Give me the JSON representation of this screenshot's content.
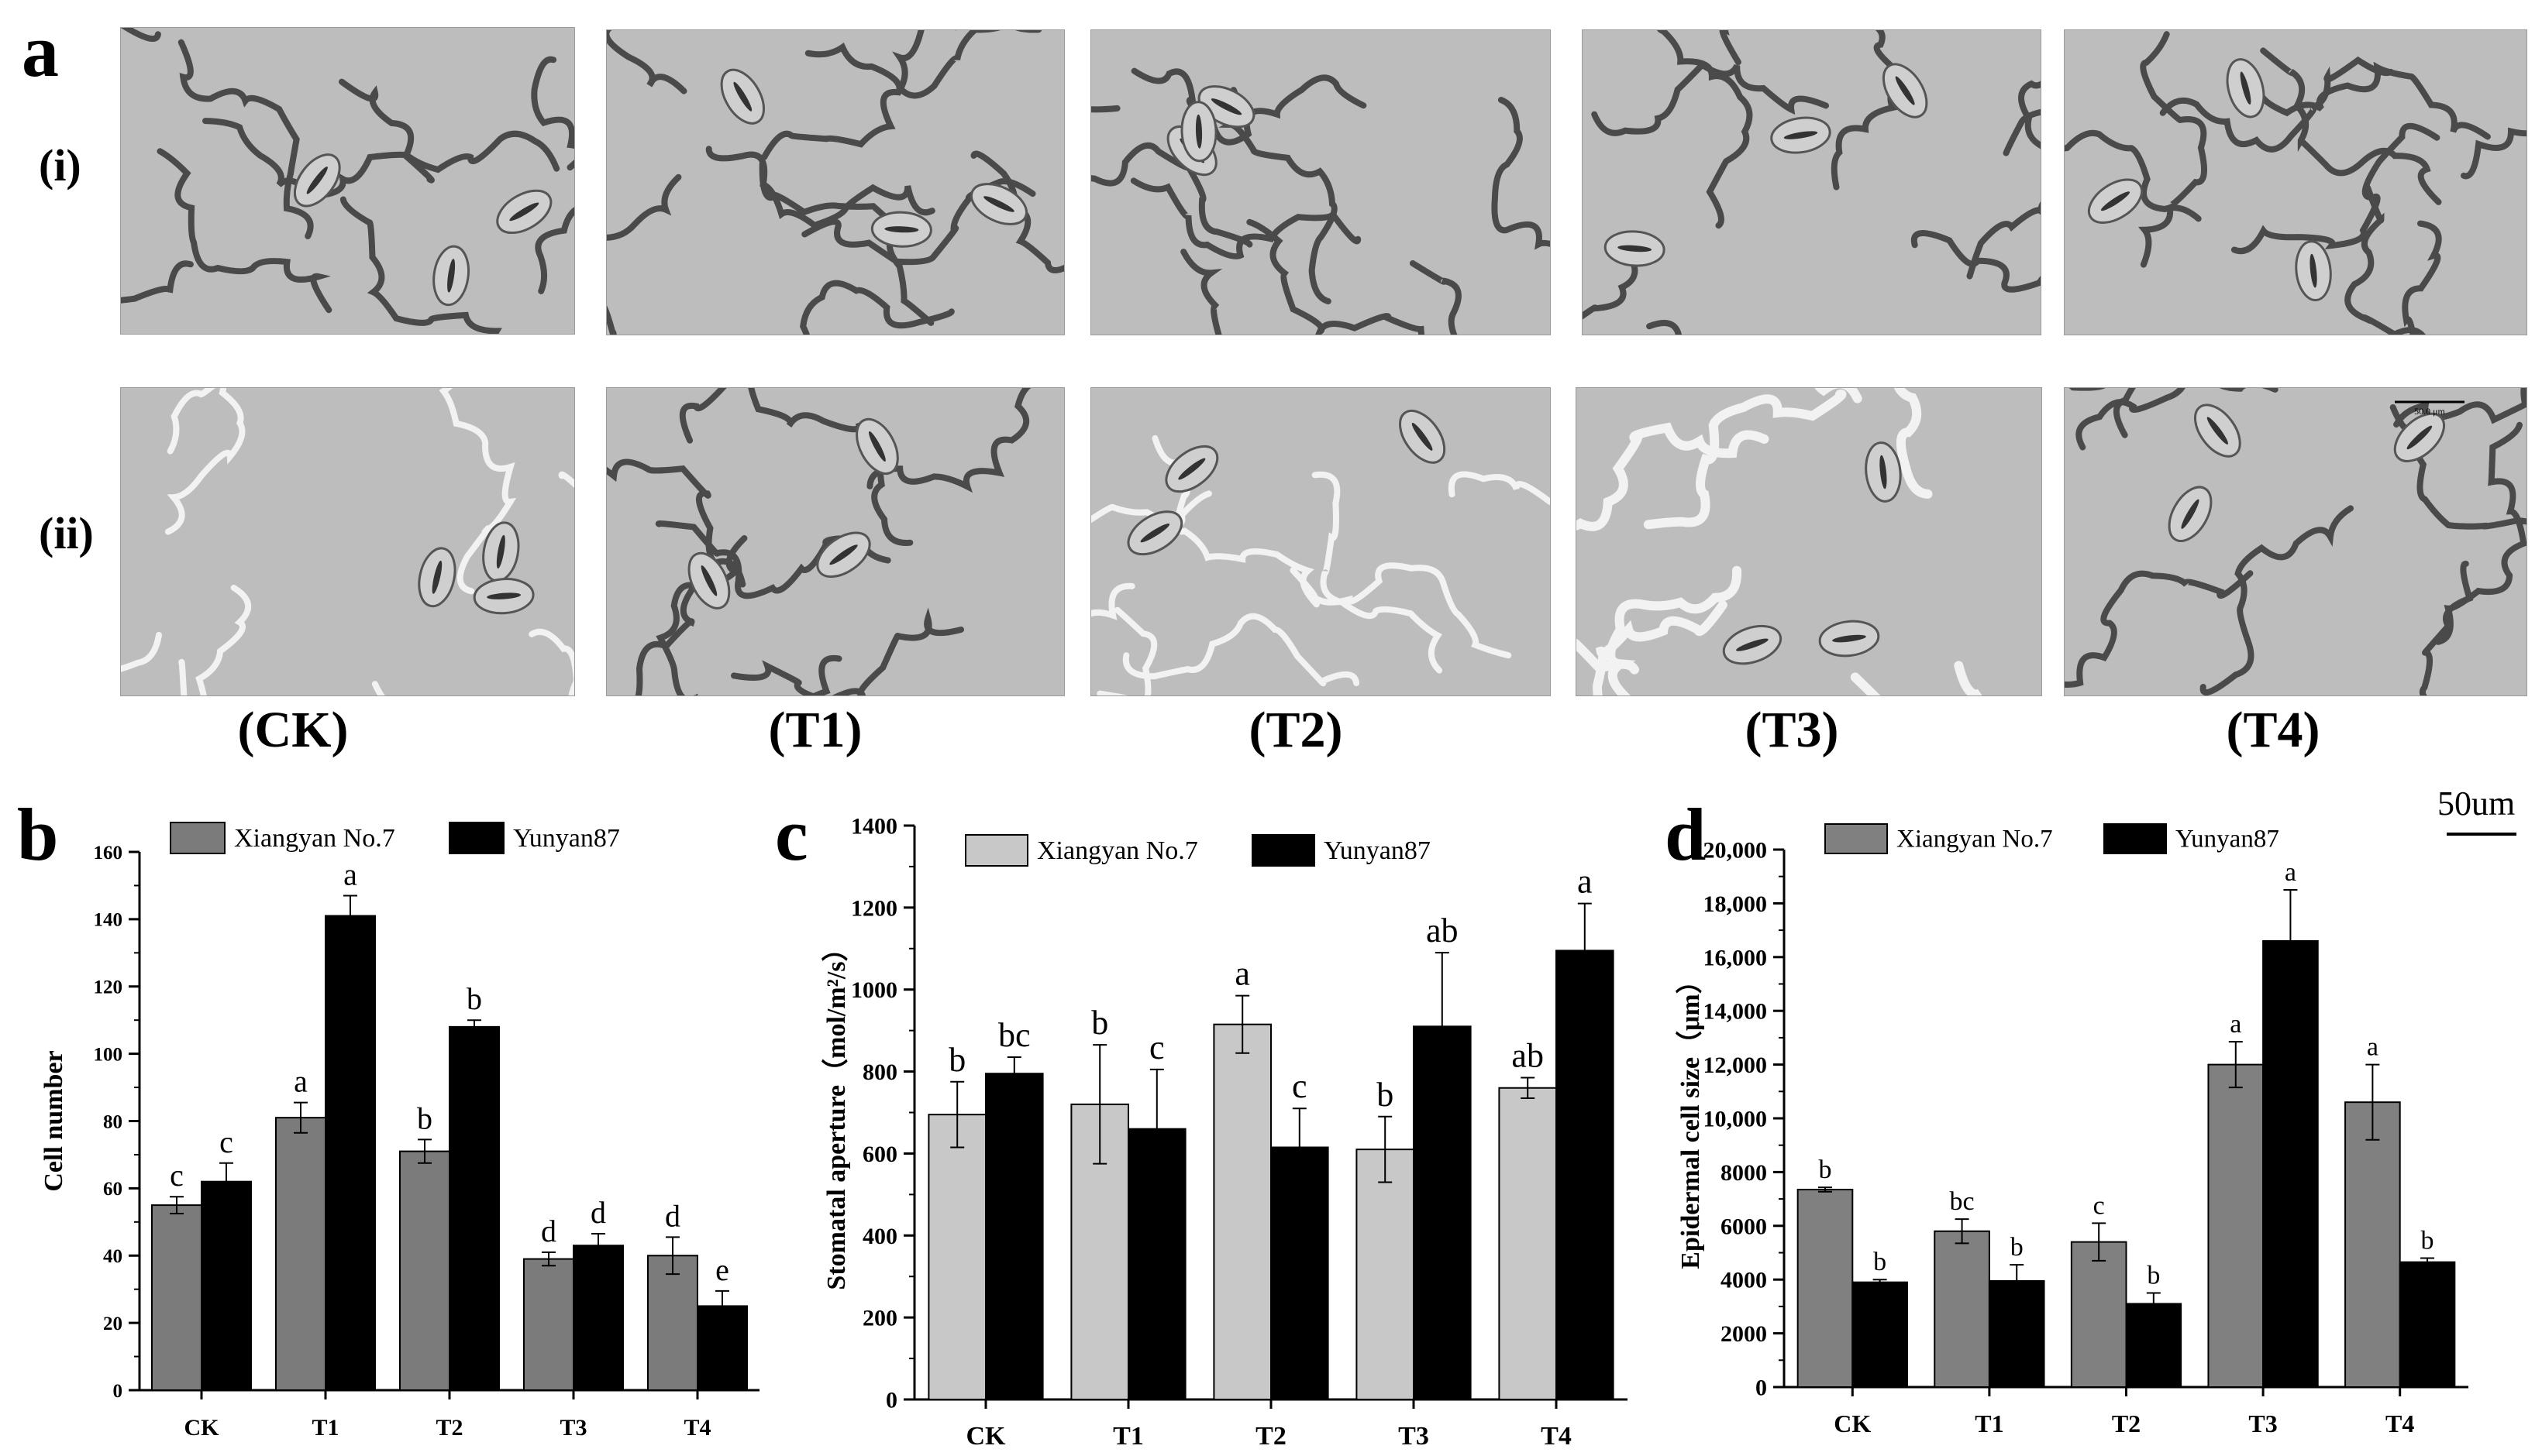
{
  "figure": {
    "panel_labels": [
      "a",
      "b",
      "c",
      "d"
    ],
    "row_labels": [
      "(i)",
      "(ii)"
    ],
    "column_labels": [
      "(CK)",
      "(T1)",
      "(T2)",
      "(T3)",
      "(T4)"
    ],
    "scale_bar_label": "50um",
    "micrograph_scale_text": "50.0 μm"
  },
  "colors": {
    "xiangyan_b": "#7b7b7b",
    "xiangyan_c": "#c8c8c8",
    "xiangyan_d": "#808080",
    "yunyan": "#000000",
    "cell_bg": "#bdbdbd",
    "cell_wall_dark": "#4a4a4a",
    "cell_wall_light": "#f2f2f2"
  },
  "chart_data": [
    {
      "panel": "b",
      "type": "bar",
      "categories": [
        "CK",
        "T1",
        "T2",
        "T3",
        "T4"
      ],
      "ylabel": "Cell number",
      "ylim": [
        0,
        160
      ],
      "yticks": [
        0,
        20,
        40,
        60,
        80,
        100,
        120,
        140,
        160
      ],
      "ytick_labels": [
        "0",
        "20",
        "40",
        "60",
        "80",
        "100",
        "120",
        "140",
        "160"
      ],
      "grid": false,
      "legend_position": "top-left",
      "series": [
        {
          "name": "Xiangyan No.7",
          "values": [
            55,
            81,
            71,
            39,
            40
          ],
          "errors": [
            2.5,
            4.5,
            3.5,
            2,
            5.5
          ],
          "letters": [
            "c",
            "a",
            "b",
            "d",
            "d"
          ]
        },
        {
          "name": "Yunyan87",
          "values": [
            62,
            141,
            108,
            43,
            25
          ],
          "errors": [
            5.5,
            6,
            2,
            3.5,
            4.5
          ],
          "letters": [
            "c",
            "a",
            "b",
            "d",
            "e"
          ]
        }
      ]
    },
    {
      "panel": "c",
      "type": "bar",
      "categories": [
        "CK",
        "T1",
        "T2",
        "T3",
        "T4"
      ],
      "ylabel": "Stomatal aperture（mol/m²/s）",
      "ylim": [
        0,
        1400
      ],
      "yticks": [
        0,
        200,
        400,
        600,
        800,
        1000,
        1200,
        1400
      ],
      "ytick_labels": [
        "0",
        "200",
        "400",
        "600",
        "800",
        "1000",
        "1200",
        "1400"
      ],
      "grid": false,
      "legend_position": "top-left",
      "series": [
        {
          "name": "Xiangyan No.7",
          "values": [
            695,
            720,
            915,
            610,
            760
          ],
          "errors": [
            80,
            145,
            70,
            80,
            25
          ],
          "letters": [
            "b",
            "b",
            "a",
            "b",
            "ab"
          ]
        },
        {
          "name": "Yunyan87",
          "values": [
            795,
            660,
            615,
            910,
            1095
          ],
          "errors": [
            40,
            145,
            95,
            180,
            115
          ],
          "letters": [
            "bc",
            "c",
            "c",
            "ab",
            "a"
          ]
        }
      ]
    },
    {
      "panel": "d",
      "type": "bar",
      "categories": [
        "CK",
        "T1",
        "T2",
        "T3",
        "T4"
      ],
      "ylabel": "Epidermal cell size（μm）",
      "ylim": [
        0,
        20000
      ],
      "yticks": [
        0,
        2000,
        4000,
        6000,
        8000,
        10000,
        12000,
        14000,
        16000,
        18000,
        20000
      ],
      "ytick_labels": [
        "0",
        "2000",
        "4000",
        "6000",
        "8000",
        "10,000",
        "12,000",
        "14,000",
        "16,000",
        "18,000",
        "20,000"
      ],
      "grid": false,
      "legend_position": "top-left",
      "series": [
        {
          "name": "Xiangyan No.7",
          "values": [
            7350,
            5800,
            5400,
            12000,
            10600
          ],
          "errors": [
            80,
            450,
            700,
            850,
            1400
          ],
          "letters": [
            "b",
            "bc",
            "c",
            "a",
            "a"
          ]
        },
        {
          "name": "Yunyan87",
          "values": [
            3900,
            3950,
            3100,
            16600,
            4650
          ],
          "errors": [
            100,
            600,
            400,
            1900,
            150
          ],
          "letters": [
            "b",
            "b",
            "b",
            "a",
            "b"
          ]
        }
      ]
    }
  ]
}
